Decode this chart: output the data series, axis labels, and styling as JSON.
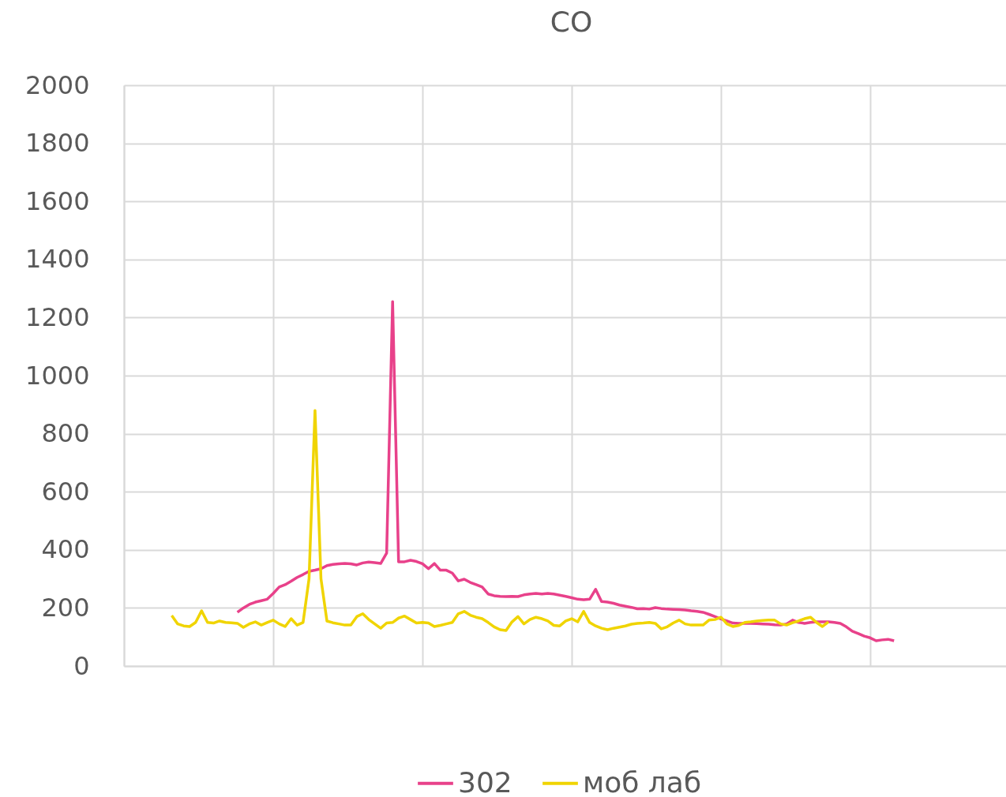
{
  "chart_data": {
    "type": "line",
    "title": "CO",
    "categories": [
      null,
      null,
      null,
      null,
      null,
      null,
      null,
      null,
      null,
      null,
      null,
      null,
      null,
      null,
      null,
      null,
      null,
      null,
      null,
      null,
      null,
      null,
      null,
      null,
      null,
      null,
      null,
      null,
      null,
      null,
      null,
      null,
      null,
      null,
      null,
      null,
      null,
      null,
      null,
      null,
      null,
      null,
      null,
      null,
      null,
      null,
      null,
      null,
      null,
      null,
      null,
      null,
      null,
      null,
      null,
      null,
      null,
      null,
      null,
      null,
      null,
      null,
      null,
      null,
      null,
      null,
      null,
      null,
      null,
      null,
      null,
      null,
      null,
      null,
      null,
      null,
      null,
      null,
      null,
      null,
      null,
      null,
      null,
      null,
      null,
      null,
      null,
      null,
      null,
      null,
      null,
      null,
      null,
      null,
      null,
      null,
      null,
      null,
      null,
      null,
      null,
      null,
      null,
      null,
      null,
      null,
      null,
      null,
      null,
      null,
      null,
      null,
      null,
      null,
      null,
      null,
      null,
      null,
      null,
      null,
      null,
      null,
      null,
      null,
      null,
      null,
      null,
      null,
      null,
      null,
      null,
      null,
      null,
      null,
      null,
      null,
      null,
      null,
      null,
      null,
      null,
      null,
      null,
      null,
      null,
      null,
      null,
      null
    ],
    "ylim": [
      0,
      2000
    ],
    "yticks": [
      0,
      200,
      400,
      600,
      800,
      1000,
      1200,
      1400,
      1600,
      1800,
      2000
    ],
    "grid": true,
    "legend": "bottom",
    "marker": "none",
    "line_style": "solid",
    "series": [
      {
        "name": "302",
        "color": "#e8418a",
        "values": [
          null,
          null,
          null,
          null,
          null,
          null,
          null,
          null,
          null,
          null,
          null,
          null,
          null,
          null,
          null,
          null,
          null,
          null,
          null,
          185,
          200,
          212,
          220,
          225,
          230,
          250,
          272,
          280,
          292,
          305,
          315,
          326,
          330,
          335,
          346,
          350,
          352,
          353,
          352,
          348,
          355,
          358,
          356,
          353,
          389,
          1255,
          359,
          359,
          364,
          360,
          352,
          335,
          353,
          330,
          330,
          320,
          293,
          299,
          288,
          280,
          272,
          248,
          242,
          240,
          239,
          240,
          239,
          245,
          248,
          250,
          248,
          250,
          248,
          244,
          240,
          235,
          230,
          228,
          230,
          264,
          222,
          220,
          216,
          210,
          206,
          202,
          197,
          198,
          196,
          201,
          198,
          196,
          195,
          194,
          193,
          190,
          188,
          185,
          178,
          170,
          162,
          155,
          148,
          147,
          147,
          147,
          146,
          145,
          144,
          142,
          141,
          145,
          158,
          150,
          147,
          150,
          152,
          152,
          152,
          150,
          147,
          135,
          120,
          112,
          103,
          97,
          87,
          90,
          92,
          87,
          null,
          null,
          null,
          null,
          null,
          null,
          null,
          null,
          null,
          null,
          null,
          null,
          null,
          null,
          null,
          null,
          null,
          null
        ]
      },
      {
        "name": "моб лаб",
        "color": "#f0d400",
        "values": [
          null,
          null,
          null,
          null,
          null,
          null,
          null,
          null,
          174,
          145,
          138,
          136,
          150,
          190,
          150,
          148,
          155,
          150,
          149,
          147,
          133,
          145,
          152,
          141,
          150,
          158,
          145,
          136,
          163,
          141,
          150,
          300,
          880,
          300,
          155,
          149,
          145,
          141,
          141,
          170,
          180,
          160,
          145,
          130,
          148,
          150,
          165,
          172,
          160,
          148,
          150,
          148,
          136,
          140,
          145,
          150,
          180,
          188,
          175,
          168,
          163,
          150,
          135,
          125,
          122,
          152,
          170,
          145,
          160,
          168,
          163,
          155,
          140,
          138,
          155,
          163,
          152,
          188,
          150,
          138,
          130,
          125,
          130,
          134,
          138,
          144,
          147,
          148,
          150,
          147,
          128,
          135,
          148,
          158,
          145,
          141,
          141,
          141,
          158,
          160,
          168,
          145,
          136,
          140,
          150,
          152,
          155,
          157,
          158,
          158,
          145,
          141,
          149,
          155,
          163,
          168,
          150,
          136,
          152,
          null,
          null,
          null,
          null,
          null,
          null,
          null,
          null,
          null,
          null,
          null,
          null,
          null,
          null,
          null,
          null,
          null,
          null,
          null,
          null,
          null,
          null,
          null,
          null,
          null,
          null,
          null,
          null,
          null
        ]
      }
    ]
  }
}
